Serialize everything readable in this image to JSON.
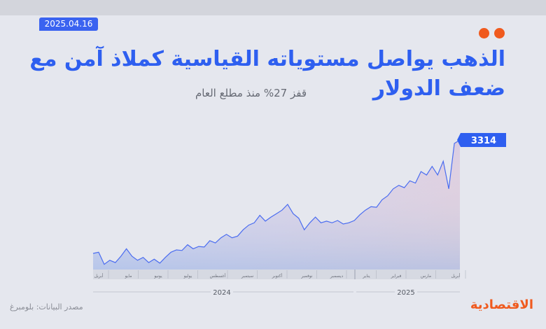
{
  "chart_data": {
    "type": "area",
    "date": "2025.04.16",
    "title": "الذهب يواصل مستوياته القياسية كملاذ آمن مع ضعف الدولار",
    "subtitle": "قفز 27% منذ مطلع العام",
    "source": "مصدر البيانات: بلومبرغ",
    "brand": "الاقتصادية",
    "month_labels": [
      "أبريل",
      "مايو",
      "يونيو",
      "يوليو",
      "أغسطس",
      "سبتمبر",
      "أكتوبر",
      "نوفمبر",
      "ديسمبر",
      "يناير",
      "فبراير",
      "مارس",
      "أبريل"
    ],
    "year_labels": [
      "2024",
      "2025"
    ],
    "ylim": [
      2190,
      3320
    ],
    "series": [
      {
        "name": "الذهب",
        "color": "#4a6cf0",
        "values": [
          2330,
          2340,
          2235,
          2270,
          2250,
          2305,
          2370,
          2305,
          2270,
          2295,
          2250,
          2280,
          2245,
          2295,
          2340,
          2360,
          2355,
          2405,
          2370,
          2390,
          2385,
          2440,
          2420,
          2465,
          2495,
          2465,
          2480,
          2535,
          2575,
          2595,
          2660,
          2610,
          2645,
          2675,
          2705,
          2755,
          2675,
          2635,
          2535,
          2595,
          2645,
          2595,
          2610,
          2595,
          2615,
          2585,
          2595,
          2615,
          2665,
          2705,
          2735,
          2730,
          2795,
          2830,
          2890,
          2920,
          2900,
          2960,
          2940,
          3040,
          3010,
          3085,
          3010,
          3130,
          2890,
          3285,
          3314
        ]
      }
    ]
  }
}
